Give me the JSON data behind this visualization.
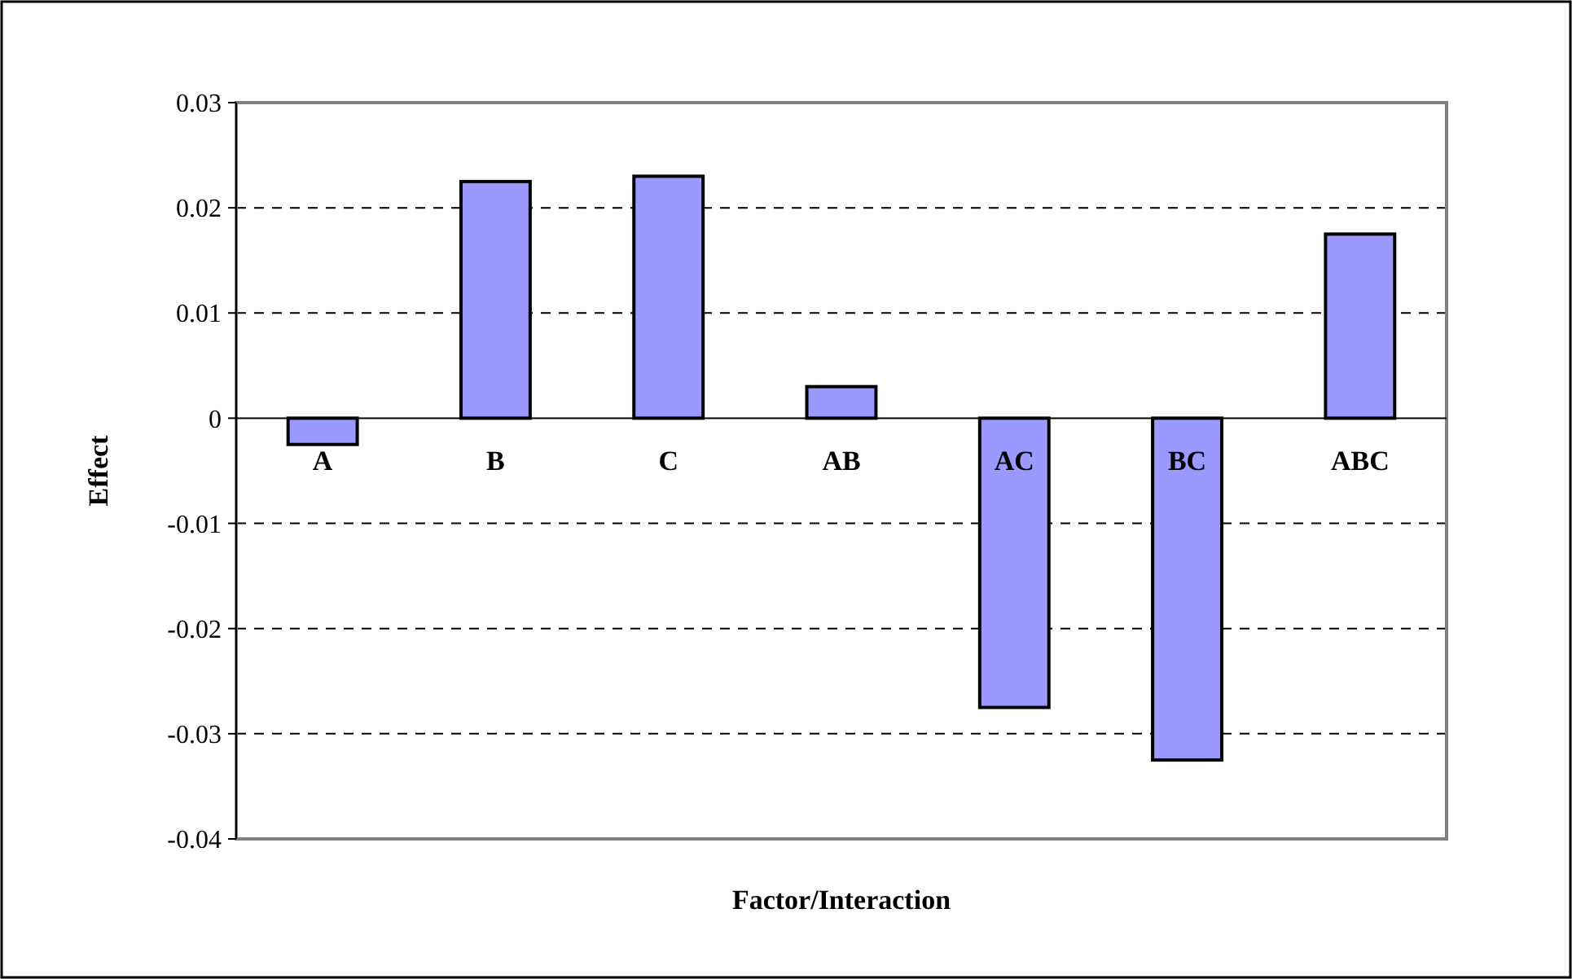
{
  "chart_data": {
    "type": "bar",
    "xlabel": "Factor/Interaction",
    "ylabel": "Effect",
    "categories": [
      "A",
      "B",
      "C",
      "AB",
      "AC",
      "BC",
      "ABC"
    ],
    "values": [
      -0.0025,
      0.0225,
      0.023,
      0.003,
      -0.0275,
      -0.0325,
      0.0175
    ],
    "color": "#9999ff",
    "ylim": [
      -0.04,
      0.03
    ],
    "yticks": [
      -0.04,
      -0.03,
      -0.02,
      -0.01,
      0,
      0.01,
      0.02,
      0.03
    ],
    "grid": "y",
    "line_style": "dashed"
  }
}
